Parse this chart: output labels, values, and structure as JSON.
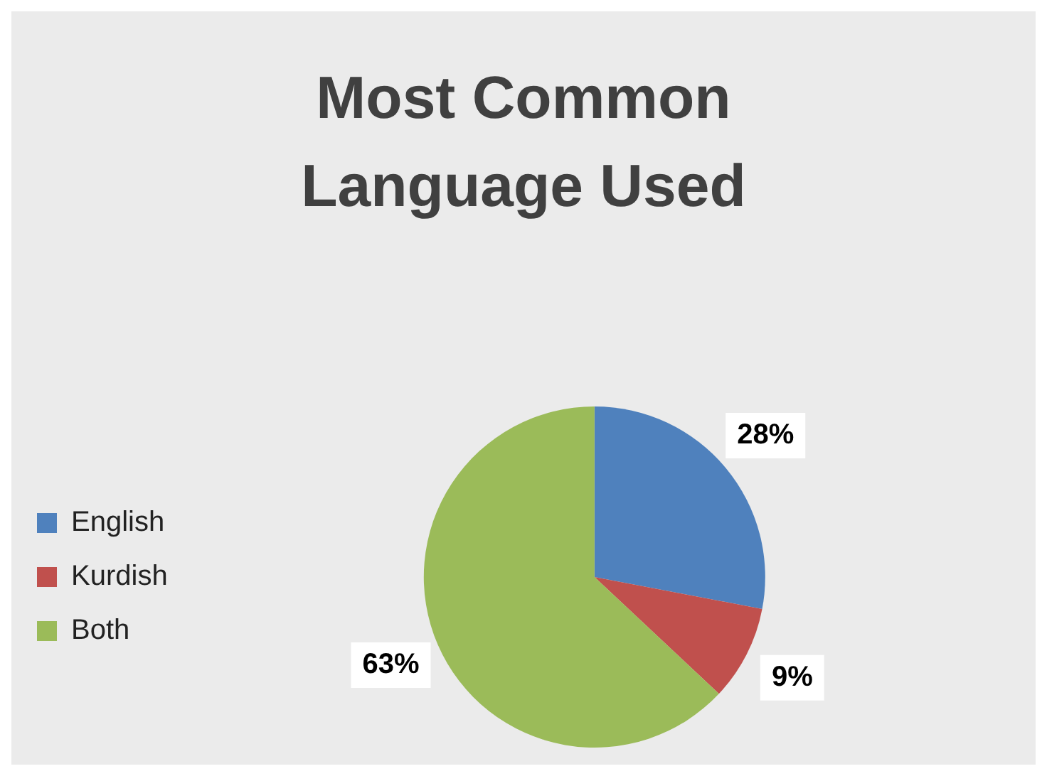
{
  "chart_data": {
    "type": "pie",
    "title": "Most Common Language Used",
    "categories": [
      "English",
      "Kurdish",
      "Both"
    ],
    "values": [
      28,
      9,
      63
    ],
    "colors": [
      "#4f81bd",
      "#c0504d",
      "#9bbb59"
    ],
    "value_labels": [
      "28%",
      "9%",
      "63%"
    ],
    "legend": "left"
  }
}
